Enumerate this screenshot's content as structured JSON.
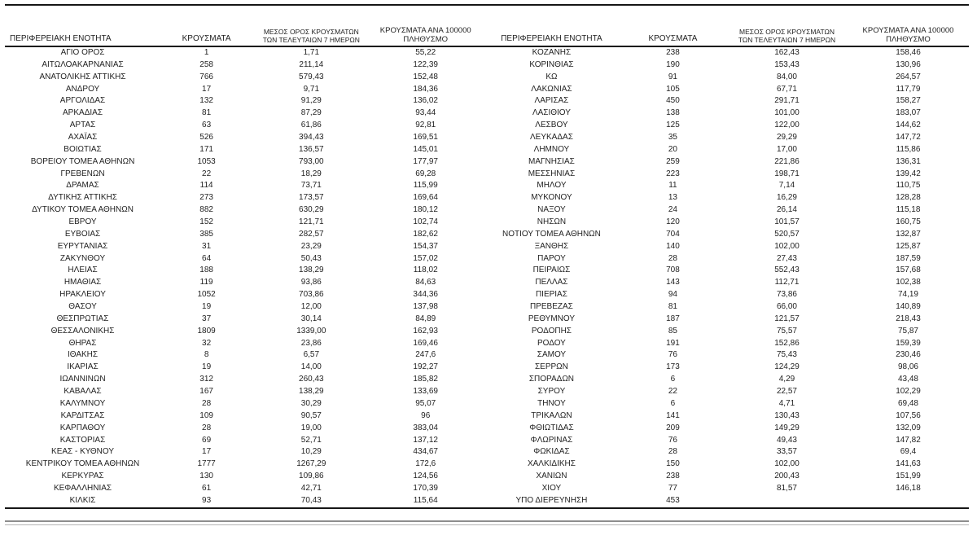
{
  "table": {
    "headers": {
      "region": "ΠΕΡΙΦΕΡΕΙΑΚΗ ΕΝΟΤΗΤΑ",
      "cases": "ΚΡΟΥΣΜΑΤΑ",
      "avg7_line1": "ΜΕΣΟΣ ΟΡΟΣ ΚΡΟΥΣΜΑΤΩΝ",
      "avg7_line2": "ΤΩΝ ΤΕΛΕΥΤΑΙΩΝ 7 ΗΜΕΡΩΝ",
      "per100k_line1": "ΚΡΟΥΣΜΑΤΑ ΑΝΑ 100000",
      "per100k_line2": "ΠΛΗΘΥΣΜΟ"
    },
    "left_rows": [
      [
        "ΑΓΙΟ ΟΡΟΣ",
        "1",
        "1,71",
        "55,22"
      ],
      [
        "ΑΙΤΩΛΟΑΚΑΡΝΑΝΙΑΣ",
        "258",
        "211,14",
        "122,39"
      ],
      [
        "ΑΝΑΤΟΛΙΚΗΣ ΑΤΤΙΚΗΣ",
        "766",
        "579,43",
        "152,48"
      ],
      [
        "ΑΝΔΡΟΥ",
        "17",
        "9,71",
        "184,36"
      ],
      [
        "ΑΡΓΟΛΙΔΑΣ",
        "132",
        "91,29",
        "136,02"
      ],
      [
        "ΑΡΚΑΔΙΑΣ",
        "81",
        "87,29",
        "93,44"
      ],
      [
        "ΑΡΤΑΣ",
        "63",
        "61,86",
        "92,81"
      ],
      [
        "ΑΧΑΪΑΣ",
        "526",
        "394,43",
        "169,51"
      ],
      [
        "ΒΟΙΩΤΙΑΣ",
        "171",
        "136,57",
        "145,01"
      ],
      [
        "ΒΟΡΕΙΟΥ ΤΟΜΕΑ ΑΘΗΝΩΝ",
        "1053",
        "793,00",
        "177,97"
      ],
      [
        "ΓΡΕΒΕΝΩΝ",
        "22",
        "18,29",
        "69,28"
      ],
      [
        "ΔΡΑΜΑΣ",
        "114",
        "73,71",
        "115,99"
      ],
      [
        "ΔΥΤΙΚΗΣ ΑΤΤΙΚΗΣ",
        "273",
        "173,57",
        "169,64"
      ],
      [
        "ΔΥΤΙΚΟΥ ΤΟΜΕΑ ΑΘΗΝΩΝ",
        "882",
        "630,29",
        "180,12"
      ],
      [
        "ΕΒΡΟΥ",
        "152",
        "121,71",
        "102,74"
      ],
      [
        "ΕΥΒΟΙΑΣ",
        "385",
        "282,57",
        "182,62"
      ],
      [
        "ΕΥΡΥΤΑΝΙΑΣ",
        "31",
        "23,29",
        "154,37"
      ],
      [
        "ΖΑΚΥΝΘΟΥ",
        "64",
        "50,43",
        "157,02"
      ],
      [
        "ΗΛΕΙΑΣ",
        "188",
        "138,29",
        "118,02"
      ],
      [
        "ΗΜΑΘΙΑΣ",
        "119",
        "93,86",
        "84,63"
      ],
      [
        "ΗΡΑΚΛΕΙΟΥ",
        "1052",
        "703,86",
        "344,36"
      ],
      [
        "ΘΑΣΟΥ",
        "19",
        "12,00",
        "137,98"
      ],
      [
        "ΘΕΣΠΡΩΤΙΑΣ",
        "37",
        "30,14",
        "84,89"
      ],
      [
        "ΘΕΣΣΑΛΟΝΙΚΗΣ",
        "1809",
        "1339,00",
        "162,93"
      ],
      [
        "ΘΗΡΑΣ",
        "32",
        "23,86",
        "169,46"
      ],
      [
        "ΙΘΑΚΗΣ",
        "8",
        "6,57",
        "247,6"
      ],
      [
        "ΙΚΑΡΙΑΣ",
        "19",
        "14,00",
        "192,27"
      ],
      [
        "ΙΩΑΝΝΙΝΩΝ",
        "312",
        "260,43",
        "185,82"
      ],
      [
        "ΚΑΒΑΛΑΣ",
        "167",
        "138,29",
        "133,69"
      ],
      [
        "ΚΑΛΥΜΝΟΥ",
        "28",
        "30,29",
        "95,07"
      ],
      [
        "ΚΑΡΔΙΤΣΑΣ",
        "109",
        "90,57",
        "96"
      ],
      [
        "ΚΑΡΠΑΘΟΥ",
        "28",
        "19,00",
        "383,04"
      ],
      [
        "ΚΑΣΤΟΡΙΑΣ",
        "69",
        "52,71",
        "137,12"
      ],
      [
        "ΚΕΑΣ - ΚΥΘΝΟΥ",
        "17",
        "10,29",
        "434,67"
      ],
      [
        "ΚΕΝΤΡΙΚΟΥ ΤΟΜΕΑ ΑΘΗΝΩΝ",
        "1777",
        "1267,29",
        "172,6"
      ],
      [
        "ΚΕΡΚΥΡΑΣ",
        "130",
        "109,86",
        "124,56"
      ],
      [
        "ΚΕΦΑΛΛΗΝΙΑΣ",
        "61",
        "42,71",
        "170,39"
      ],
      [
        "ΚΙΛΚΙΣ",
        "93",
        "70,43",
        "115,64"
      ]
    ],
    "right_rows": [
      [
        "ΚΟΖΑΝΗΣ",
        "238",
        "162,43",
        "158,46"
      ],
      [
        "ΚΟΡΙΝΘΙΑΣ",
        "190",
        "153,43",
        "130,96"
      ],
      [
        "ΚΩ",
        "91",
        "84,00",
        "264,57"
      ],
      [
        "ΛΑΚΩΝΙΑΣ",
        "105",
        "67,71",
        "117,79"
      ],
      [
        "ΛΑΡΙΣΑΣ",
        "450",
        "291,71",
        "158,27"
      ],
      [
        "ΛΑΣΙΘΙΟΥ",
        "138",
        "101,00",
        "183,07"
      ],
      [
        "ΛΕΣΒΟΥ",
        "125",
        "122,00",
        "144,62"
      ],
      [
        "ΛΕΥΚΑΔΑΣ",
        "35",
        "29,29",
        "147,72"
      ],
      [
        "ΛΗΜΝΟΥ",
        "20",
        "17,00",
        "115,86"
      ],
      [
        "ΜΑΓΝΗΣΙΑΣ",
        "259",
        "221,86",
        "136,31"
      ],
      [
        "ΜΕΣΣΗΝΙΑΣ",
        "223",
        "198,71",
        "139,42"
      ],
      [
        "ΜΗΛΟΥ",
        "11",
        "7,14",
        "110,75"
      ],
      [
        "ΜΥΚΟΝΟΥ",
        "13",
        "16,29",
        "128,28"
      ],
      [
        "ΝΑΞΟΥ",
        "24",
        "26,14",
        "115,18"
      ],
      [
        "ΝΗΣΩΝ",
        "120",
        "101,57",
        "160,75"
      ],
      [
        "ΝΟΤΙΟΥ ΤΟΜΕΑ ΑΘΗΝΩΝ",
        "704",
        "520,57",
        "132,87"
      ],
      [
        "ΞΑΝΘΗΣ",
        "140",
        "102,00",
        "125,87"
      ],
      [
        "ΠΑΡΟΥ",
        "28",
        "27,43",
        "187,59"
      ],
      [
        "ΠΕΙΡΑΙΩΣ",
        "708",
        "552,43",
        "157,68"
      ],
      [
        "ΠΕΛΛΑΣ",
        "143",
        "112,71",
        "102,38"
      ],
      [
        "ΠΙΕΡΙΑΣ",
        "94",
        "73,86",
        "74,19"
      ],
      [
        "ΠΡΕΒΕΖΑΣ",
        "81",
        "66,00",
        "140,89"
      ],
      [
        "ΡΕΘΥΜΝΟΥ",
        "187",
        "121,57",
        "218,43"
      ],
      [
        "ΡΟΔΟΠΗΣ",
        "85",
        "75,57",
        "75,87"
      ],
      [
        "ΡΟΔΟΥ",
        "191",
        "152,86",
        "159,39"
      ],
      [
        "ΣΑΜΟΥ",
        "76",
        "75,43",
        "230,46"
      ],
      [
        "ΣΕΡΡΩΝ",
        "173",
        "124,29",
        "98,06"
      ],
      [
        "ΣΠΟΡΑΔΩΝ",
        "6",
        "4,29",
        "43,48"
      ],
      [
        "ΣΥΡΟΥ",
        "22",
        "22,57",
        "102,29"
      ],
      [
        "ΤΗΝΟΥ",
        "6",
        "4,71",
        "69,48"
      ],
      [
        "ΤΡΙΚΑΛΩΝ",
        "141",
        "130,43",
        "107,56"
      ],
      [
        "ΦΘΙΩΤΙΔΑΣ",
        "209",
        "149,29",
        "132,09"
      ],
      [
        "ΦΛΩΡΙΝΑΣ",
        "76",
        "49,43",
        "147,82"
      ],
      [
        "ΦΩΚΙΔΑΣ",
        "28",
        "33,57",
        "69,4"
      ],
      [
        "ΧΑΛΚΙΔΙΚΗΣ",
        "150",
        "102,00",
        "141,63"
      ],
      [
        "ΧΑΝΙΩΝ",
        "238",
        "200,43",
        "151,99"
      ],
      [
        "ΧΙΟΥ",
        "77",
        "81,57",
        "146,18"
      ],
      [
        "ΥΠΟ ΔΙΕΡΕΥΝΗΣΗ",
        "453",
        "",
        ""
      ]
    ]
  }
}
